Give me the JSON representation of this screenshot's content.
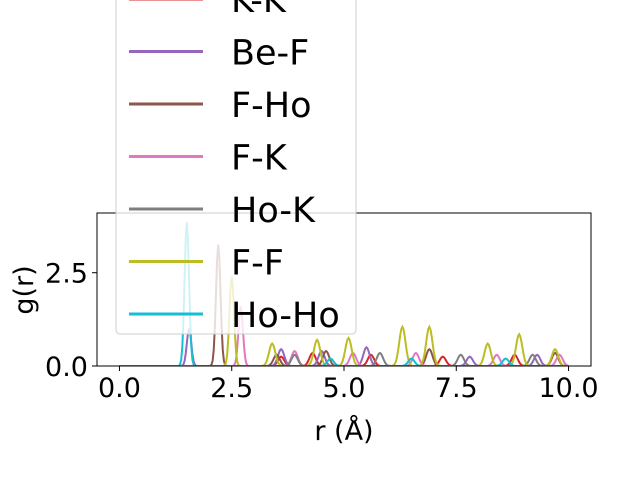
{
  "chart_data": {
    "type": "line",
    "xlabel": "r (Å)",
    "ylabel": "g(r)",
    "xlim": [
      -0.5,
      10.5
    ],
    "ylim": [
      0,
      4.1
    ],
    "xticks": [
      0.0,
      2.5,
      5.0,
      7.5,
      10.0
    ],
    "xtick_labels": [
      "0.0",
      "2.5",
      "5.0",
      "7.5",
      "10.0"
    ],
    "yticks": [
      0.0,
      2.5
    ],
    "ytick_labels": [
      "0.0",
      "2.5"
    ],
    "grid": false,
    "legend_position": "upper left, extending above the axes",
    "series": [
      {
        "name": "K-K",
        "color": "#d62728",
        "peaks": [
          [
            3.6,
            0.25
          ],
          [
            4.3,
            0.35
          ],
          [
            5.6,
            0.3
          ],
          [
            7.2,
            0.25
          ],
          [
            8.8,
            0.3
          ]
        ]
      },
      {
        "name": "Be-F",
        "color": "#9467bd",
        "peaks": [
          [
            1.55,
            1.0
          ],
          [
            3.6,
            0.45
          ],
          [
            4.5,
            0.4
          ],
          [
            5.5,
            0.5
          ],
          [
            7.8,
            0.25
          ],
          [
            9.3,
            0.3
          ]
        ]
      },
      {
        "name": "F-Ho",
        "color": "#8c564b",
        "peaks": [
          [
            2.2,
            3.25
          ],
          [
            3.5,
            0.3
          ],
          [
            4.6,
            0.4
          ],
          [
            6.9,
            0.45
          ],
          [
            9.7,
            0.35
          ]
        ]
      },
      {
        "name": "F-K",
        "color": "#e377c2",
        "peaks": [
          [
            2.7,
            1.6
          ],
          [
            3.9,
            0.4
          ],
          [
            5.2,
            0.35
          ],
          [
            6.6,
            0.35
          ],
          [
            8.4,
            0.3
          ],
          [
            9.8,
            0.3
          ]
        ]
      },
      {
        "name": "Ho-K",
        "color": "#7f7f7f",
        "peaks": [
          [
            3.9,
            0.3
          ],
          [
            5.8,
            0.35
          ],
          [
            7.6,
            0.3
          ],
          [
            9.2,
            0.3
          ]
        ]
      },
      {
        "name": "F-F",
        "color": "#bcbd22",
        "peaks": [
          [
            2.5,
            2.4
          ],
          [
            3.4,
            0.6
          ],
          [
            4.4,
            0.7
          ],
          [
            5.1,
            0.75
          ],
          [
            6.3,
            1.05
          ],
          [
            6.9,
            1.05
          ],
          [
            8.2,
            0.6
          ],
          [
            8.9,
            0.85
          ],
          [
            9.7,
            0.45
          ]
        ]
      },
      {
        "name": "Ho-Ho",
        "color": "#17becf",
        "peaks": [
          [
            1.5,
            3.85
          ],
          [
            4.7,
            0.2
          ],
          [
            6.5,
            0.2
          ],
          [
            8.6,
            0.2
          ]
        ]
      }
    ]
  }
}
